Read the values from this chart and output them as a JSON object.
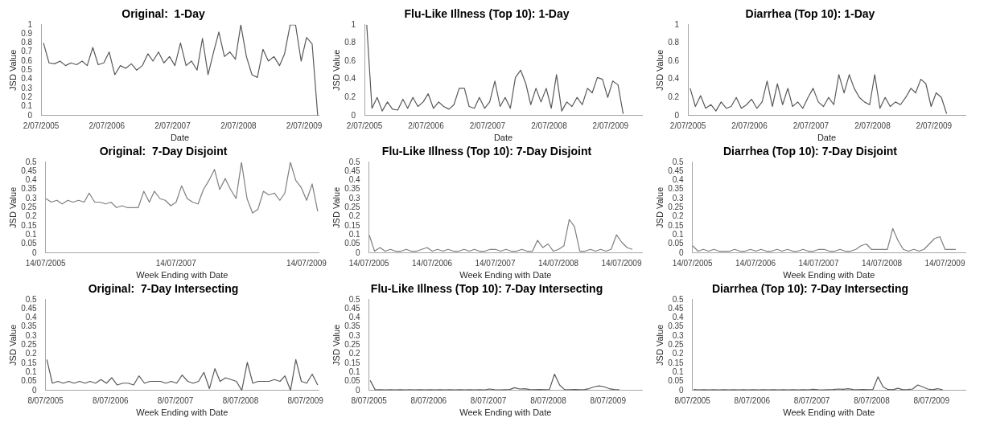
{
  "chart_data": [
    {
      "type": "line",
      "title": "Original:  1-Day",
      "xlabel": "Date",
      "ylabel": "JSD Value",
      "grid": false,
      "xlim": [
        "2005-07-02",
        "2009-09-20"
      ],
      "xticks": [
        {
          "value": "2005-07-02",
          "label": "2/07/2005"
        },
        {
          "value": "2006-07-02",
          "label": "2/07/2006"
        },
        {
          "value": "2007-07-02",
          "label": "2/07/2007"
        },
        {
          "value": "2008-07-02",
          "label": "2/07/2008"
        },
        {
          "value": "2009-07-02",
          "label": "2/07/2009"
        }
      ],
      "ylim": [
        0,
        1
      ],
      "yticks": [
        0,
        0.1,
        0.2,
        0.3,
        0.4,
        0.5,
        0.6,
        0.7,
        0.8,
        0.9,
        1
      ],
      "x": [
        "2005-07-15",
        "2005-08-15",
        "2005-09-15",
        "2005-10-15",
        "2005-11-15",
        "2005-12-15",
        "2006-01-15",
        "2006-02-15",
        "2006-03-15",
        "2006-04-15",
        "2006-05-15",
        "2006-06-15",
        "2006-07-15",
        "2006-08-15",
        "2006-09-15",
        "2006-10-15",
        "2006-11-15",
        "2006-12-15",
        "2007-01-15",
        "2007-02-15",
        "2007-03-15",
        "2007-04-15",
        "2007-05-15",
        "2007-06-15",
        "2007-07-15",
        "2007-08-15",
        "2007-09-15",
        "2007-10-15",
        "2007-11-15",
        "2007-12-15",
        "2008-01-15",
        "2008-02-15",
        "2008-03-15",
        "2008-04-15",
        "2008-05-15",
        "2008-06-15",
        "2008-07-15",
        "2008-08-15",
        "2008-09-15",
        "2008-10-15",
        "2008-11-15",
        "2008-12-15",
        "2009-01-15",
        "2009-02-15",
        "2009-03-15",
        "2009-04-15",
        "2009-05-15",
        "2009-06-15",
        "2009-07-15",
        "2009-08-15",
        "2009-09-15"
      ],
      "series": [
        {
          "color": "#595959",
          "values": [
            0.8,
            0.58,
            0.57,
            0.6,
            0.55,
            0.58,
            0.56,
            0.6,
            0.55,
            0.75,
            0.56,
            0.58,
            0.7,
            0.45,
            0.55,
            0.52,
            0.57,
            0.5,
            0.55,
            0.68,
            0.6,
            0.7,
            0.58,
            0.65,
            0.55,
            0.8,
            0.55,
            0.6,
            0.5,
            0.85,
            0.45,
            0.7,
            0.92,
            0.65,
            0.7,
            0.62,
            1,
            0.65,
            0.45,
            0.42,
            0.73,
            0.6,
            0.65,
            0.55,
            0.68,
            1,
            1,
            0.6,
            0.86,
            0.79,
            0
          ]
        }
      ]
    },
    {
      "type": "line",
      "title": "Flu-Like Illness (Top 10): 1-Day",
      "xlabel": "Date",
      "ylabel": "JSD Value",
      "grid": false,
      "xlim": [
        "2005-07-02",
        "2010-01-05"
      ],
      "xticks": [
        {
          "value": "2005-07-02",
          "label": "2/07/2005"
        },
        {
          "value": "2006-07-02",
          "label": "2/07/2006"
        },
        {
          "value": "2007-07-02",
          "label": "2/07/2007"
        },
        {
          "value": "2008-07-02",
          "label": "2/07/2008"
        },
        {
          "value": "2009-07-02",
          "label": "2/07/2009"
        }
      ],
      "ylim": [
        0,
        1
      ],
      "yticks": [
        0,
        0.2,
        0.4,
        0.6,
        0.8,
        1
      ],
      "x": [
        "2005-07-15",
        "2005-08-15",
        "2005-09-15",
        "2005-10-15",
        "2005-11-15",
        "2005-12-15",
        "2006-01-15",
        "2006-02-15",
        "2006-03-15",
        "2006-04-15",
        "2006-05-15",
        "2006-06-15",
        "2006-07-15",
        "2006-08-15",
        "2006-09-15",
        "2006-10-15",
        "2006-11-15",
        "2006-12-15",
        "2007-01-15",
        "2007-02-15",
        "2007-03-15",
        "2007-04-15",
        "2007-05-15",
        "2007-06-15",
        "2007-07-15",
        "2007-08-15",
        "2007-09-15",
        "2007-10-15",
        "2007-11-15",
        "2007-12-15",
        "2008-01-15",
        "2008-02-15",
        "2008-03-15",
        "2008-04-15",
        "2008-05-15",
        "2008-06-15",
        "2008-07-15",
        "2008-08-15",
        "2008-09-15",
        "2008-10-15",
        "2008-11-15",
        "2008-12-15",
        "2009-01-15",
        "2009-02-15",
        "2009-03-15",
        "2009-04-15",
        "2009-05-15",
        "2009-06-15",
        "2009-07-15",
        "2009-08-15",
        "2009-09-15"
      ],
      "series": [
        {
          "color": "#595959",
          "values": [
            1,
            0.08,
            0.2,
            0.05,
            0.15,
            0.07,
            0.06,
            0.18,
            0.08,
            0.2,
            0.1,
            0.15,
            0.24,
            0.08,
            0.15,
            0.1,
            0.07,
            0.12,
            0.3,
            0.3,
            0.1,
            0.08,
            0.2,
            0.08,
            0.15,
            0.38,
            0.1,
            0.2,
            0.08,
            0.42,
            0.5,
            0.35,
            0.12,
            0.3,
            0.15,
            0.3,
            0.08,
            0.45,
            0.05,
            0.15,
            0.1,
            0.2,
            0.12,
            0.3,
            0.25,
            0.42,
            0.4,
            0.2,
            0.38,
            0.34,
            0.02
          ]
        }
      ]
    },
    {
      "type": "line",
      "title": "Diarrhea (Top 10): 1-Day",
      "xlabel": "Date",
      "ylabel": "JSD Value",
      "grid": false,
      "xlim": [
        "2005-07-02",
        "2010-01-05"
      ],
      "xticks": [
        {
          "value": "2005-07-02",
          "label": "2/07/2005"
        },
        {
          "value": "2006-07-02",
          "label": "2/07/2006"
        },
        {
          "value": "2007-07-02",
          "label": "2/07/2007"
        },
        {
          "value": "2008-07-02",
          "label": "2/07/2008"
        },
        {
          "value": "2009-07-02",
          "label": "2/07/2009"
        }
      ],
      "ylim": [
        0,
        1
      ],
      "yticks": [
        0,
        0.2,
        0.4,
        0.6,
        0.8,
        1
      ],
      "x": [
        "2005-07-15",
        "2005-08-15",
        "2005-09-15",
        "2005-10-15",
        "2005-11-15",
        "2005-12-15",
        "2006-01-15",
        "2006-02-15",
        "2006-03-15",
        "2006-04-15",
        "2006-05-15",
        "2006-06-15",
        "2006-07-15",
        "2006-08-15",
        "2006-09-15",
        "2006-10-15",
        "2006-11-15",
        "2006-12-15",
        "2007-01-15",
        "2007-02-15",
        "2007-03-15",
        "2007-04-15",
        "2007-05-15",
        "2007-06-15",
        "2007-07-15",
        "2007-08-15",
        "2007-09-15",
        "2007-10-15",
        "2007-11-15",
        "2007-12-15",
        "2008-01-15",
        "2008-02-15",
        "2008-03-15",
        "2008-04-15",
        "2008-05-15",
        "2008-06-15",
        "2008-07-15",
        "2008-08-15",
        "2008-09-15",
        "2008-10-15",
        "2008-11-15",
        "2008-12-15",
        "2009-01-15",
        "2009-02-15",
        "2009-03-15",
        "2009-04-15",
        "2009-05-15",
        "2009-06-15",
        "2009-07-15",
        "2009-08-15",
        "2009-09-15"
      ],
      "series": [
        {
          "color": "#595959",
          "values": [
            0.3,
            0.1,
            0.22,
            0.08,
            0.12,
            0.05,
            0.15,
            0.08,
            0.1,
            0.2,
            0.08,
            0.12,
            0.18,
            0.08,
            0.15,
            0.38,
            0.1,
            0.35,
            0.12,
            0.3,
            0.1,
            0.15,
            0.08,
            0.2,
            0.3,
            0.15,
            0.1,
            0.2,
            0.12,
            0.45,
            0.25,
            0.45,
            0.3,
            0.2,
            0.15,
            0.12,
            0.45,
            0.08,
            0.2,
            0.1,
            0.15,
            0.12,
            0.2,
            0.3,
            0.25,
            0.4,
            0.35,
            0.1,
            0.25,
            0.2,
            0.02
          ]
        }
      ]
    },
    {
      "type": "line",
      "title": "Original:  7-Day Disjoint",
      "xlabel": "Week Ending with Date",
      "ylabel": "JSD Value",
      "grid": false,
      "xlim": [
        "2005-07-14",
        "2009-09-20"
      ],
      "xticks": [
        {
          "value": "2005-07-14",
          "label": "14/07/2005"
        },
        {
          "value": "2007-07-14",
          "label": "14/07/2007"
        },
        {
          "value": "2009-07-14",
          "label": "14/07/2009"
        }
      ],
      "ylim": [
        0,
        0.5
      ],
      "yticks": [
        0,
        0.05,
        0.1,
        0.15,
        0.2,
        0.25,
        0.3,
        0.35,
        0.4,
        0.45,
        0.5
      ],
      "x": [
        "2005-07-15",
        "2005-08-15",
        "2005-09-15",
        "2005-10-15",
        "2005-11-15",
        "2005-12-15",
        "2006-01-15",
        "2006-02-15",
        "2006-03-15",
        "2006-04-15",
        "2006-05-15",
        "2006-06-15",
        "2006-07-15",
        "2006-08-15",
        "2006-09-15",
        "2006-10-15",
        "2006-11-15",
        "2006-12-15",
        "2007-01-15",
        "2007-02-15",
        "2007-03-15",
        "2007-04-15",
        "2007-05-15",
        "2007-06-15",
        "2007-07-15",
        "2007-08-15",
        "2007-09-15",
        "2007-10-15",
        "2007-11-15",
        "2007-12-15",
        "2008-01-15",
        "2008-02-15",
        "2008-03-15",
        "2008-04-15",
        "2008-05-15",
        "2008-06-15",
        "2008-07-15",
        "2008-08-15",
        "2008-09-15",
        "2008-10-15",
        "2008-11-15",
        "2008-12-15",
        "2009-01-15",
        "2009-02-15",
        "2009-03-15",
        "2009-04-15",
        "2009-05-15",
        "2009-06-15",
        "2009-07-15",
        "2009-08-15",
        "2009-09-15"
      ],
      "series": [
        {
          "color": "#7f7f7f",
          "values": [
            0.3,
            0.28,
            0.29,
            0.27,
            0.29,
            0.28,
            0.29,
            0.28,
            0.33,
            0.28,
            0.28,
            0.27,
            0.28,
            0.25,
            0.26,
            0.25,
            0.25,
            0.25,
            0.34,
            0.28,
            0.34,
            0.3,
            0.29,
            0.26,
            0.28,
            0.37,
            0.3,
            0.28,
            0.27,
            0.35,
            0.4,
            0.46,
            0.35,
            0.41,
            0.35,
            0.3,
            0.5,
            0.3,
            0.22,
            0.24,
            0.34,
            0.32,
            0.33,
            0.29,
            0.33,
            0.5,
            0.4,
            0.36,
            0.29,
            0.38,
            0.23
          ]
        }
      ]
    },
    {
      "type": "line",
      "title": "Flu-Like Illness (Top 10): 7-Day Disjoint",
      "xlabel": "Week Ending with Date",
      "ylabel": "JSD Value",
      "grid": false,
      "xlim": [
        "2005-07-14",
        "2009-11-10"
      ],
      "xticks": [
        {
          "value": "2005-07-14",
          "label": "14/07/2005"
        },
        {
          "value": "2006-07-14",
          "label": "14/07/2006"
        },
        {
          "value": "2007-07-14",
          "label": "14/07/2007"
        },
        {
          "value": "2008-07-14",
          "label": "14/07/2008"
        },
        {
          "value": "2009-07-14",
          "label": "14/07/2009"
        }
      ],
      "ylim": [
        0,
        0.5
      ],
      "yticks": [
        0,
        0.05,
        0.1,
        0.15,
        0.2,
        0.25,
        0.3,
        0.35,
        0.4,
        0.45,
        0.5
      ],
      "x": [
        "2005-07-15",
        "2005-08-15",
        "2005-09-15",
        "2005-10-15",
        "2005-11-15",
        "2005-12-15",
        "2006-01-15",
        "2006-02-15",
        "2006-03-15",
        "2006-04-15",
        "2006-05-15",
        "2006-06-15",
        "2006-07-15",
        "2006-08-15",
        "2006-09-15",
        "2006-10-15",
        "2006-11-15",
        "2006-12-15",
        "2007-01-15",
        "2007-02-15",
        "2007-03-15",
        "2007-04-15",
        "2007-05-15",
        "2007-06-15",
        "2007-07-15",
        "2007-08-15",
        "2007-09-15",
        "2007-10-15",
        "2007-11-15",
        "2007-12-15",
        "2008-01-15",
        "2008-02-15",
        "2008-03-15",
        "2008-04-15",
        "2008-05-15",
        "2008-06-15",
        "2008-07-15",
        "2008-08-15",
        "2008-09-15",
        "2008-10-15",
        "2008-11-15",
        "2008-12-15",
        "2009-01-15",
        "2009-02-15",
        "2009-03-15",
        "2009-04-15",
        "2009-05-15",
        "2009-06-15",
        "2009-07-15",
        "2009-08-15",
        "2009-09-15"
      ],
      "series": [
        {
          "color": "#7f7f7f",
          "values": [
            0.1,
            0.01,
            0.03,
            0.01,
            0.02,
            0.01,
            0.01,
            0.02,
            0.01,
            0.01,
            0.02,
            0.03,
            0.01,
            0.02,
            0.01,
            0.02,
            0.01,
            0.01,
            0.02,
            0.01,
            0.02,
            0.01,
            0.01,
            0.02,
            0.02,
            0.01,
            0.02,
            0.01,
            0.01,
            0.02,
            0.01,
            0.01,
            0.07,
            0.03,
            0.05,
            0.01,
            0.02,
            0.04,
            0.185,
            0.145,
            0.01,
            0.01,
            0.02,
            0.01,
            0.02,
            0.01,
            0.02,
            0.1,
            0.06,
            0.03,
            0.02
          ]
        }
      ]
    },
    {
      "type": "line",
      "title": "Diarrhea (Top 10): 7-Day Disjoint",
      "xlabel": "Week Ending with Date",
      "ylabel": "JSD Value",
      "grid": false,
      "xlim": [
        "2005-07-14",
        "2009-11-10"
      ],
      "xticks": [
        {
          "value": "2005-07-14",
          "label": "14/07/2005"
        },
        {
          "value": "2006-07-14",
          "label": "14/07/2006"
        },
        {
          "value": "2007-07-14",
          "label": "14/07/2007"
        },
        {
          "value": "2008-07-14",
          "label": "14/07/2008"
        },
        {
          "value": "2009-07-14",
          "label": "14/07/2009"
        }
      ],
      "ylim": [
        0,
        0.5
      ],
      "yticks": [
        0,
        0.05,
        0.1,
        0.15,
        0.2,
        0.25,
        0.3,
        0.35,
        0.4,
        0.45,
        0.5
      ],
      "x": [
        "2005-07-15",
        "2005-08-15",
        "2005-09-15",
        "2005-10-15",
        "2005-11-15",
        "2005-12-15",
        "2006-01-15",
        "2006-02-15",
        "2006-03-15",
        "2006-04-15",
        "2006-05-15",
        "2006-06-15",
        "2006-07-15",
        "2006-08-15",
        "2006-09-15",
        "2006-10-15",
        "2006-11-15",
        "2006-12-15",
        "2007-01-15",
        "2007-02-15",
        "2007-03-15",
        "2007-04-15",
        "2007-05-15",
        "2007-06-15",
        "2007-07-15",
        "2007-08-15",
        "2007-09-15",
        "2007-10-15",
        "2007-11-15",
        "2007-12-15",
        "2008-01-15",
        "2008-02-15",
        "2008-03-15",
        "2008-04-15",
        "2008-05-15",
        "2008-06-15",
        "2008-07-15",
        "2008-08-15",
        "2008-09-15",
        "2008-10-15",
        "2008-11-15",
        "2008-12-15",
        "2009-01-15",
        "2009-02-15",
        "2009-03-15",
        "2009-04-15",
        "2009-05-15",
        "2009-06-15",
        "2009-07-15",
        "2009-08-15",
        "2009-09-15"
      ],
      "series": [
        {
          "color": "#7f7f7f",
          "values": [
            0.04,
            0.01,
            0.02,
            0.01,
            0.02,
            0.01,
            0.01,
            0.01,
            0.02,
            0.01,
            0.01,
            0.02,
            0.01,
            0.02,
            0.01,
            0.01,
            0.02,
            0.01,
            0.02,
            0.01,
            0.01,
            0.02,
            0.01,
            0.01,
            0.02,
            0.02,
            0.01,
            0.01,
            0.02,
            0.01,
            0.01,
            0.02,
            0.04,
            0.05,
            0.02,
            0.02,
            0.02,
            0.02,
            0.135,
            0.07,
            0.02,
            0.01,
            0.02,
            0.01,
            0.02,
            0.05,
            0.08,
            0.09,
            0.02,
            0.02,
            0.02
          ]
        }
      ]
    },
    {
      "type": "line",
      "title": "Original:  7-Day Intersecting",
      "xlabel": "Week Ending with Date",
      "ylabel": "JSD Value",
      "grid": false,
      "xlim": [
        "2005-07-08",
        "2009-09-20"
      ],
      "xticks": [
        {
          "value": "2005-07-08",
          "label": "8/07/2005"
        },
        {
          "value": "2006-07-08",
          "label": "8/07/2006"
        },
        {
          "value": "2007-07-08",
          "label": "8/07/2007"
        },
        {
          "value": "2008-07-08",
          "label": "8/07/2008"
        },
        {
          "value": "2009-07-08",
          "label": "8/07/2009"
        }
      ],
      "ylim": [
        0,
        0.5
      ],
      "yticks": [
        0,
        0.05,
        0.1,
        0.15,
        0.2,
        0.25,
        0.3,
        0.35,
        0.4,
        0.45,
        0.5
      ],
      "x": [
        "2005-07-15",
        "2005-08-15",
        "2005-09-15",
        "2005-10-15",
        "2005-11-15",
        "2005-12-15",
        "2006-01-15",
        "2006-02-15",
        "2006-03-15",
        "2006-04-15",
        "2006-05-15",
        "2006-06-15",
        "2006-07-15",
        "2006-08-15",
        "2006-09-15",
        "2006-10-15",
        "2006-11-15",
        "2006-12-15",
        "2007-01-15",
        "2007-02-15",
        "2007-03-15",
        "2007-04-15",
        "2007-05-15",
        "2007-06-15",
        "2007-07-15",
        "2007-08-15",
        "2007-09-15",
        "2007-10-15",
        "2007-11-15",
        "2007-12-15",
        "2008-01-15",
        "2008-02-15",
        "2008-03-15",
        "2008-04-15",
        "2008-05-15",
        "2008-06-15",
        "2008-07-15",
        "2008-08-15",
        "2008-09-15",
        "2008-10-15",
        "2008-11-15",
        "2008-12-15",
        "2009-01-15",
        "2009-02-15",
        "2009-03-15",
        "2009-04-15",
        "2009-05-15",
        "2009-06-15",
        "2009-07-15",
        "2009-08-15",
        "2009-09-15"
      ],
      "series": [
        {
          "color": "#595959",
          "values": [
            0.17,
            0.04,
            0.05,
            0.04,
            0.05,
            0.04,
            0.05,
            0.04,
            0.05,
            0.04,
            0.06,
            0.04,
            0.07,
            0.03,
            0.04,
            0.04,
            0.03,
            0.08,
            0.04,
            0.05,
            0.05,
            0.05,
            0.04,
            0.05,
            0.04,
            0.085,
            0.05,
            0.04,
            0.05,
            0.1,
            0.01,
            0.12,
            0.05,
            0.07,
            0.06,
            0.05,
            0,
            0.155,
            0.04,
            0.05,
            0.05,
            0.05,
            0.06,
            0.05,
            0.08,
            0,
            0.17,
            0.05,
            0.04,
            0.09,
            0.03
          ]
        }
      ]
    },
    {
      "type": "line",
      "title": "Flu-Like Illness (Top 10): 7-Day Intersecting",
      "xlabel": "Week Ending with Date",
      "ylabel": "JSD Value",
      "grid": false,
      "xlim": [
        "2005-07-08",
        "2010-02-01"
      ],
      "xticks": [
        {
          "value": "2005-07-08",
          "label": "8/07/2005"
        },
        {
          "value": "2006-07-08",
          "label": "8/07/2006"
        },
        {
          "value": "2007-07-08",
          "label": "8/07/2007"
        },
        {
          "value": "2008-07-08",
          "label": "8/07/2008"
        },
        {
          "value": "2009-07-08",
          "label": "8/07/2009"
        }
      ],
      "ylim": [
        0,
        0.5
      ],
      "yticks": [
        0,
        0.05,
        0.1,
        0.15,
        0.2,
        0.25,
        0.3,
        0.35,
        0.4,
        0.45,
        0.5
      ],
      "x": [
        "2005-07-15",
        "2005-08-15",
        "2005-09-15",
        "2005-10-15",
        "2005-11-15",
        "2005-12-15",
        "2006-01-15",
        "2006-02-15",
        "2006-03-15",
        "2006-04-15",
        "2006-05-15",
        "2006-06-15",
        "2006-07-15",
        "2006-08-15",
        "2006-09-15",
        "2006-10-15",
        "2006-11-15",
        "2006-12-15",
        "2007-01-15",
        "2007-02-15",
        "2007-03-15",
        "2007-04-15",
        "2007-05-15",
        "2007-06-15",
        "2007-07-15",
        "2007-08-15",
        "2007-09-15",
        "2007-10-15",
        "2007-11-15",
        "2007-12-15",
        "2008-01-15",
        "2008-02-15",
        "2008-03-15",
        "2008-04-15",
        "2008-05-15",
        "2008-06-15",
        "2008-07-15",
        "2008-08-15",
        "2008-09-15",
        "2008-10-15",
        "2008-11-15",
        "2008-12-15",
        "2009-01-15",
        "2009-02-15",
        "2009-03-15",
        "2009-04-15",
        "2009-05-15",
        "2009-06-15",
        "2009-07-15",
        "2009-08-15",
        "2009-09-15"
      ],
      "series": [
        {
          "color": "#595959",
          "values": [
            0.055,
            0.003,
            0.004,
            0.003,
            0.004,
            0.003,
            0.004,
            0.003,
            0.004,
            0.003,
            0.004,
            0.003,
            0.004,
            0.003,
            0.004,
            0.003,
            0.004,
            0.003,
            0.004,
            0.003,
            0.004,
            0.003,
            0.004,
            0.003,
            0.008,
            0.004,
            0.003,
            0.004,
            0.005,
            0.015,
            0.008,
            0.01,
            0.005,
            0.004,
            0.005,
            0.004,
            0.005,
            0.09,
            0.03,
            0.005,
            0.004,
            0.005,
            0.004,
            0.005,
            0.01,
            0.02,
            0.025,
            0.02,
            0.01,
            0.005,
            0.004
          ]
        }
      ]
    },
    {
      "type": "line",
      "title": "Diarrhea (Top 10): 7-Day Intersecting",
      "xlabel": "Week Ending with Date",
      "ylabel": "JSD Value",
      "grid": false,
      "xlim": [
        "2005-07-08",
        "2010-02-01"
      ],
      "xticks": [
        {
          "value": "2005-07-08",
          "label": "8/07/2005"
        },
        {
          "value": "2006-07-08",
          "label": "8/07/2006"
        },
        {
          "value": "2007-07-08",
          "label": "8/07/2007"
        },
        {
          "value": "2008-07-08",
          "label": "8/07/2008"
        },
        {
          "value": "2009-07-08",
          "label": "8/07/2009"
        }
      ],
      "ylim": [
        0,
        0.5
      ],
      "yticks": [
        0,
        0.05,
        0.1,
        0.15,
        0.2,
        0.25,
        0.3,
        0.35,
        0.4,
        0.45,
        0.5
      ],
      "x": [
        "2005-07-15",
        "2005-08-15",
        "2005-09-15",
        "2005-10-15",
        "2005-11-15",
        "2005-12-15",
        "2006-01-15",
        "2006-02-15",
        "2006-03-15",
        "2006-04-15",
        "2006-05-15",
        "2006-06-15",
        "2006-07-15",
        "2006-08-15",
        "2006-09-15",
        "2006-10-15",
        "2006-11-15",
        "2006-12-15",
        "2007-01-15",
        "2007-02-15",
        "2007-03-15",
        "2007-04-15",
        "2007-05-15",
        "2007-06-15",
        "2007-07-15",
        "2007-08-15",
        "2007-09-15",
        "2007-10-15",
        "2007-11-15",
        "2007-12-15",
        "2008-01-15",
        "2008-02-15",
        "2008-03-15",
        "2008-04-15",
        "2008-05-15",
        "2008-06-15",
        "2008-07-15",
        "2008-08-15",
        "2008-09-15",
        "2008-10-15",
        "2008-11-15",
        "2008-12-15",
        "2009-01-15",
        "2009-02-15",
        "2009-03-15",
        "2009-04-15",
        "2009-05-15",
        "2009-06-15",
        "2009-07-15",
        "2009-08-15",
        "2009-09-15"
      ],
      "series": [
        {
          "color": "#595959",
          "values": [
            0.005,
            0.003,
            0.004,
            0.003,
            0.004,
            0.003,
            0.004,
            0.003,
            0.004,
            0.003,
            0.004,
            0.003,
            0.004,
            0.003,
            0.004,
            0.003,
            0.004,
            0.003,
            0.004,
            0.003,
            0.004,
            0.003,
            0.004,
            0.003,
            0.006,
            0.004,
            0.003,
            0.004,
            0.005,
            0.008,
            0.006,
            0.01,
            0.005,
            0.004,
            0.005,
            0.004,
            0.005,
            0.075,
            0.02,
            0.005,
            0.004,
            0.012,
            0.004,
            0.005,
            0.008,
            0.03,
            0.02,
            0.008,
            0.004,
            0.01,
            0.003
          ]
        }
      ]
    }
  ]
}
